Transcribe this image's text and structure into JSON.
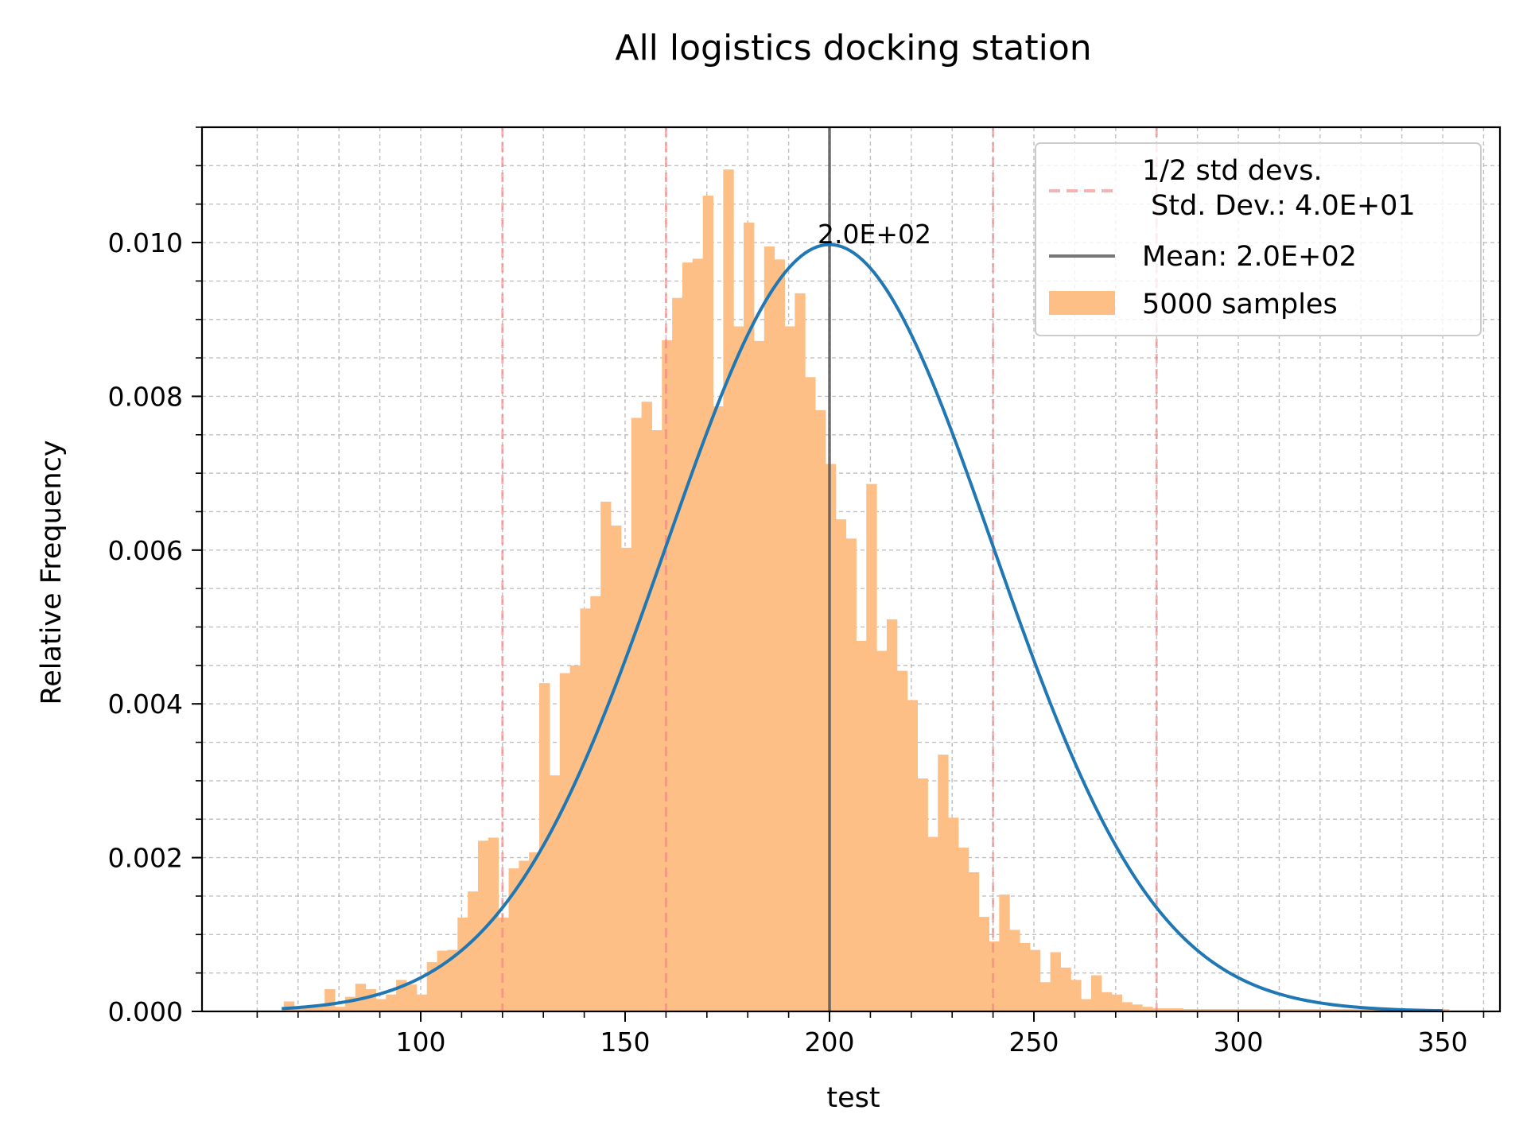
{
  "chart_data": {
    "type": "histogram",
    "title": "All logistics  docking station",
    "xlabel": "test",
    "ylabel": "Relative Frequency",
    "xlim": [
      46.5,
      364
    ],
    "ylim": [
      0,
      0.0115
    ],
    "xticks": [
      100,
      150,
      200,
      250,
      300,
      350
    ],
    "xtick_labels": [
      "100",
      "150",
      "200",
      "250",
      "300",
      "350"
    ],
    "yticks": [
      0,
      0.002,
      0.004,
      0.006,
      0.008,
      0.01
    ],
    "ytick_labels": [
      "0.000",
      "0.002",
      "0.004",
      "0.006",
      "0.008",
      "0.010"
    ],
    "grid": true,
    "legend_position": "top-right",
    "annotation": "2.0E+02",
    "histogram": {
      "label": "5000 samples",
      "color": "#fdbf86",
      "bin_start": 66.5,
      "bin_width": 2.5,
      "values": [
        0.00013,
        6e-05,
        6e-05,
        6e-05,
        0.00029,
        6e-05,
        0.00019,
        0.00036,
        0.00029,
        0.00016,
        0.00022,
        0.00041,
        0.00035,
        0.00022,
        0.00064,
        0.00079,
        0.0008,
        0.00122,
        0.00156,
        0.00222,
        0.00226,
        0.00122,
        0.00186,
        0.00196,
        0.00207,
        0.00427,
        0.00307,
        0.0044,
        0.0045,
        0.00524,
        0.0054,
        0.00663,
        0.00632,
        0.00603,
        0.00772,
        0.00793,
        0.00756,
        0.00873,
        0.00928,
        0.00974,
        0.00979,
        0.01061,
        0.00787,
        0.01095,
        0.00891,
        0.01026,
        0.00872,
        0.00995,
        0.00978,
        0.00891,
        0.00934,
        0.00825,
        0.00782,
        0.00712,
        0.0064,
        0.00615,
        0.00482,
        0.00686,
        0.00469,
        0.0051,
        0.00443,
        0.00405,
        0.00303,
        0.00227,
        0.00334,
        0.00252,
        0.00213,
        0.00181,
        0.00123,
        0.00091,
        0.00152,
        0.00106,
        0.00089,
        0.0008,
        0.00038,
        0.00077,
        0.00057,
        0.00041,
        0.00016,
        0.00047,
        0.00025,
        0.00022,
        0.00012,
        9e-05,
        6e-05,
        4e-05,
        4e-05,
        4e-05,
        3e-05,
        3e-05,
        3e-05,
        3e-05,
        3e-05,
        3e-05,
        3e-05,
        3e-05,
        3e-05,
        3e-05,
        3e-05,
        3e-05,
        3e-05,
        3e-05,
        3e-05,
        3e-05,
        3e-05,
        3e-05,
        3e-05,
        3e-05,
        3e-05,
        3e-05,
        3e-05,
        3e-05,
        3e-05,
        3e-05
      ]
    },
    "series": [
      {
        "name": "normal fit",
        "type": "line",
        "color": "#1f77b4",
        "mean": 200,
        "std": 40,
        "x_range": [
          66,
          350
        ]
      }
    ],
    "vlines": [
      {
        "x": 200,
        "color": "#555555",
        "style": "solid",
        "role": "mean"
      },
      {
        "x": 120,
        "color": "#f08080",
        "style": "dashed",
        "role": "std"
      },
      {
        "x": 160,
        "color": "#f08080",
        "style": "dashed",
        "role": "std"
      },
      {
        "x": 240,
        "color": "#f08080",
        "style": "dashed",
        "role": "std"
      },
      {
        "x": 280,
        "color": "#f08080",
        "style": "dashed",
        "role": "std"
      }
    ],
    "legend": {
      "std_label_line1": "1/2 std devs.",
      "std_label_line2": " Std. Dev.: 4.0E+01",
      "mean_label": "Mean: 2.0E+02",
      "hist_label": "5000 samples"
    }
  }
}
